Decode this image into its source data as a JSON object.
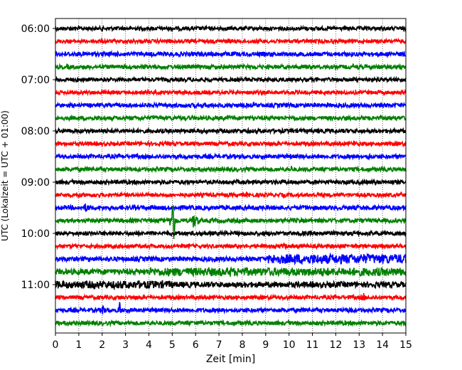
{
  "chart_data": {
    "type": "line",
    "xlabel": "Zeit  [min]",
    "ylabel": "UTC (Lokalzeit = UTC + 01:00)",
    "xlim": [
      0,
      15
    ],
    "x_ticks": [
      "0",
      "1",
      "2",
      "3",
      "4",
      "5",
      "6",
      "7",
      "8",
      "9",
      "10",
      "11",
      "12",
      "13",
      "14",
      "15"
    ],
    "y_ticks": [
      "06:00",
      "07:00",
      "08:00",
      "09:00",
      "10:00",
      "11:00"
    ],
    "grid": "vertical dotted",
    "trace_colors": [
      "#000000",
      "#ff0000",
      "#0000ff",
      "#008000"
    ],
    "traces": [
      {
        "start": "06:00",
        "color": "#000000",
        "amplitude": 0.15,
        "events": []
      },
      {
        "start": "06:15",
        "color": "#ff0000",
        "amplitude": 0.15,
        "events": []
      },
      {
        "start": "06:30",
        "color": "#0000ff",
        "amplitude": 0.17,
        "events": []
      },
      {
        "start": "06:45",
        "color": "#008000",
        "amplitude": 0.16,
        "events": []
      },
      {
        "start": "07:00",
        "color": "#000000",
        "amplitude": 0.15,
        "events": []
      },
      {
        "start": "07:15",
        "color": "#ff0000",
        "amplitude": 0.15,
        "events": []
      },
      {
        "start": "07:30",
        "color": "#0000ff",
        "amplitude": 0.16,
        "events": []
      },
      {
        "start": "07:45",
        "color": "#008000",
        "amplitude": 0.16,
        "events": []
      },
      {
        "start": "08:00",
        "color": "#000000",
        "amplitude": 0.16,
        "events": []
      },
      {
        "start": "08:15",
        "color": "#ff0000",
        "amplitude": 0.15,
        "events": [
          {
            "t": 12.8,
            "amp": 0.25,
            "dur": 0.6
          }
        ]
      },
      {
        "start": "08:30",
        "color": "#0000ff",
        "amplitude": 0.16,
        "events": [
          {
            "t": 13.4,
            "amp": 0.3,
            "dur": 0.3
          }
        ]
      },
      {
        "start": "08:45",
        "color": "#008000",
        "amplitude": 0.16,
        "events": [
          {
            "t": 10.1,
            "amp": 0.3,
            "dur": 0.3
          }
        ]
      },
      {
        "start": "09:00",
        "color": "#000000",
        "amplitude": 0.16,
        "events": []
      },
      {
        "start": "09:15",
        "color": "#ff0000",
        "amplitude": 0.15,
        "events": []
      },
      {
        "start": "09:30",
        "color": "#0000ff",
        "amplitude": 0.17,
        "events": [
          {
            "t": 1.3,
            "amp": 0.35,
            "dur": 0.8
          }
        ]
      },
      {
        "start": "09:45",
        "color": "#008000",
        "amplitude": 0.16,
        "events": [
          {
            "t": 5.05,
            "amp": 2.0,
            "dur": 0.15
          },
          {
            "t": 4.95,
            "amp": 0.8,
            "dur": 0.4
          },
          {
            "t": 5.9,
            "amp": 0.6,
            "dur": 0.5
          }
        ]
      },
      {
        "start": "10:00",
        "color": "#000000",
        "amplitude": 0.16,
        "events": []
      },
      {
        "start": "10:15",
        "color": "#ff0000",
        "amplitude": 0.15,
        "events": [
          {
            "t": 9.8,
            "amp": 0.25,
            "dur": 0.4
          }
        ]
      },
      {
        "start": "10:30",
        "color": "#0000ff",
        "amplitude": 0.18,
        "events": [],
        "burst": {
          "from": 9.1,
          "to": 15,
          "amp": 0.38
        }
      },
      {
        "start": "10:45",
        "color": "#008000",
        "amplitude": 0.22,
        "events": [
          {
            "t": 7.5,
            "amp": 0.4,
            "dur": 0.6
          }
        ],
        "burst": {
          "from": 4,
          "to": 15,
          "amp": 0.32
        }
      },
      {
        "start": "11:00",
        "color": "#000000",
        "amplitude": 0.22,
        "events": [],
        "burst": {
          "from": 0,
          "to": 5,
          "amp": 0.3
        }
      },
      {
        "start": "11:15",
        "color": "#ff0000",
        "amplitude": 0.15,
        "events": [
          {
            "t": 13.2,
            "amp": 0.35,
            "dur": 0.2
          }
        ]
      },
      {
        "start": "11:30",
        "color": "#0000ff",
        "amplitude": 0.16,
        "events": [
          {
            "t": 2.05,
            "amp": 0.6,
            "dur": 0.12
          },
          {
            "t": 2.75,
            "amp": 0.7,
            "dur": 0.12
          },
          {
            "t": 12.6,
            "amp": 0.3,
            "dur": 0.4
          }
        ]
      },
      {
        "start": "11:45",
        "color": "#008000",
        "amplitude": 0.16,
        "events": []
      }
    ]
  }
}
